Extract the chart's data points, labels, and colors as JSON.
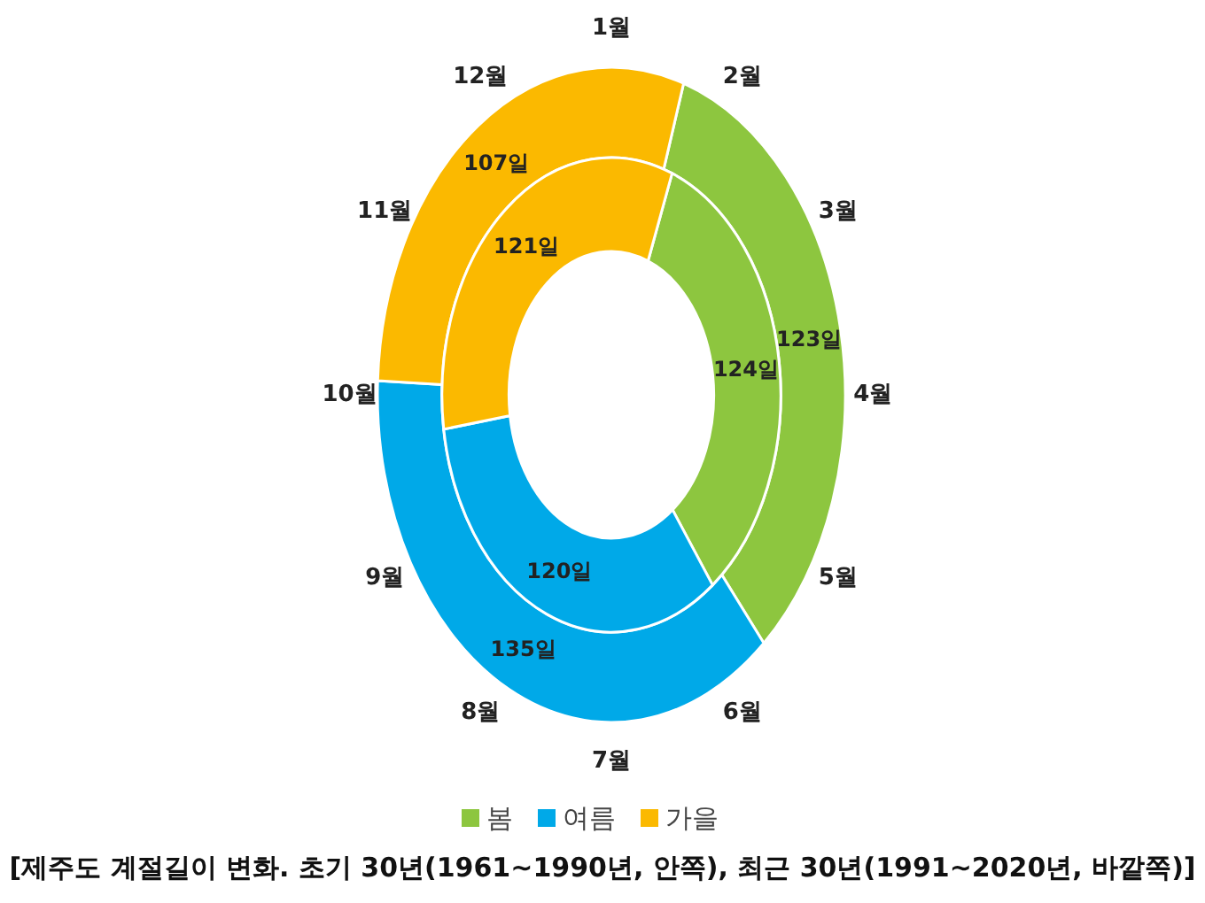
{
  "chart_data": {
    "type": "donut",
    "title": "[제주도 계절길이 변화. 초기 30년(1961~1990년, 안쪽), 최근 30년(1991~2020년, 바깥쪽)]",
    "categories": [
      "봄",
      "여름",
      "가을"
    ],
    "colors": [
      "#8dc63f",
      "#00a9e8",
      "#fbb900"
    ],
    "series": [
      {
        "values": [
          123,
          135,
          107
        ],
        "value_labels": [
          "123일",
          "135일",
          "107일"
        ]
      },
      {
        "values": [
          124,
          120,
          121
        ],
        "value_labels": [
          "124일",
          "120일",
          "121일"
        ]
      }
    ],
    "annotations": [
      "1월",
      "2월",
      "3월",
      "4월",
      "5월",
      "6월",
      "7월",
      "8월",
      "9월",
      "10월",
      "11월",
      "12월"
    ],
    "legend": "bottom"
  }
}
